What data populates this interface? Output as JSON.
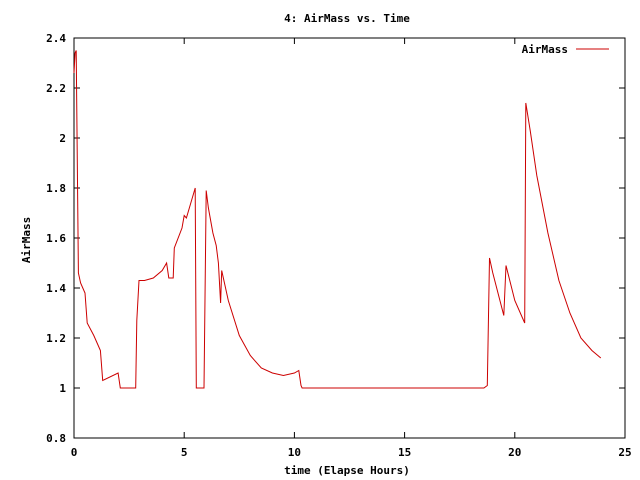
{
  "chart_data": {
    "type": "line",
    "title": "4: AirMass vs. Time",
    "xlabel": "time (Elapse Hours)",
    "ylabel": "AirMass",
    "xlim": [
      0,
      25
    ],
    "ylim": [
      0.8,
      2.4
    ],
    "xticks": [
      0,
      5,
      10,
      15,
      20,
      25
    ],
    "yticks": [
      0.8,
      1,
      1.2,
      1.4,
      1.6,
      1.8,
      2,
      2.2,
      2.4
    ],
    "xtick_labels": [
      "0",
      "5",
      "10",
      "15",
      "20",
      "25"
    ],
    "ytick_labels": [
      "0.8",
      "1",
      "1.2",
      "1.4",
      "1.6",
      "1.8",
      "2",
      "2.2",
      "2.4"
    ],
    "grid": false,
    "legend": "top-right",
    "series": [
      {
        "name": "AirMass",
        "color": "#cc0000",
        "x": [
          0.0,
          0.05,
          0.1,
          0.2,
          0.3,
          0.5,
          0.6,
          0.9,
          1.1,
          1.2,
          1.3,
          2.0,
          2.1,
          2.3,
          2.6,
          2.8,
          2.85,
          2.95,
          3.2,
          3.6,
          4.0,
          4.2,
          4.3,
          4.5,
          4.55,
          4.9,
          5.0,
          5.1,
          5.5,
          5.55,
          5.9,
          6.0,
          6.1,
          6.3,
          6.45,
          6.55,
          6.65,
          6.7,
          6.8,
          7.0,
          7.5,
          8.0,
          8.5,
          9.0,
          9.5,
          10.0,
          10.2,
          10.3,
          10.35,
          12.0,
          14.0,
          16.0,
          18.0,
          18.4,
          18.6,
          18.75,
          18.85,
          19.0,
          19.5,
          19.6,
          20.0,
          20.45,
          20.5,
          20.7,
          21.0,
          21.5,
          22.0,
          22.5,
          23.0,
          23.5,
          23.9
        ],
        "y": [
          2.26,
          2.34,
          2.35,
          1.46,
          1.42,
          1.38,
          1.26,
          1.21,
          1.17,
          1.15,
          1.03,
          1.06,
          1.0,
          1.0,
          1.0,
          1.0,
          1.27,
          1.43,
          1.43,
          1.44,
          1.47,
          1.5,
          1.44,
          1.44,
          1.56,
          1.64,
          1.69,
          1.68,
          1.8,
          1.0,
          1.0,
          1.79,
          1.72,
          1.62,
          1.57,
          1.5,
          1.34,
          1.47,
          1.43,
          1.35,
          1.21,
          1.13,
          1.08,
          1.06,
          1.05,
          1.06,
          1.07,
          1.01,
          1.0,
          1.0,
          1.0,
          1.0,
          1.0,
          1.0,
          1.0,
          1.01,
          1.52,
          1.46,
          1.29,
          1.49,
          1.35,
          1.26,
          2.14,
          2.03,
          1.85,
          1.62,
          1.43,
          1.3,
          1.2,
          1.15,
          1.12
        ]
      }
    ]
  }
}
